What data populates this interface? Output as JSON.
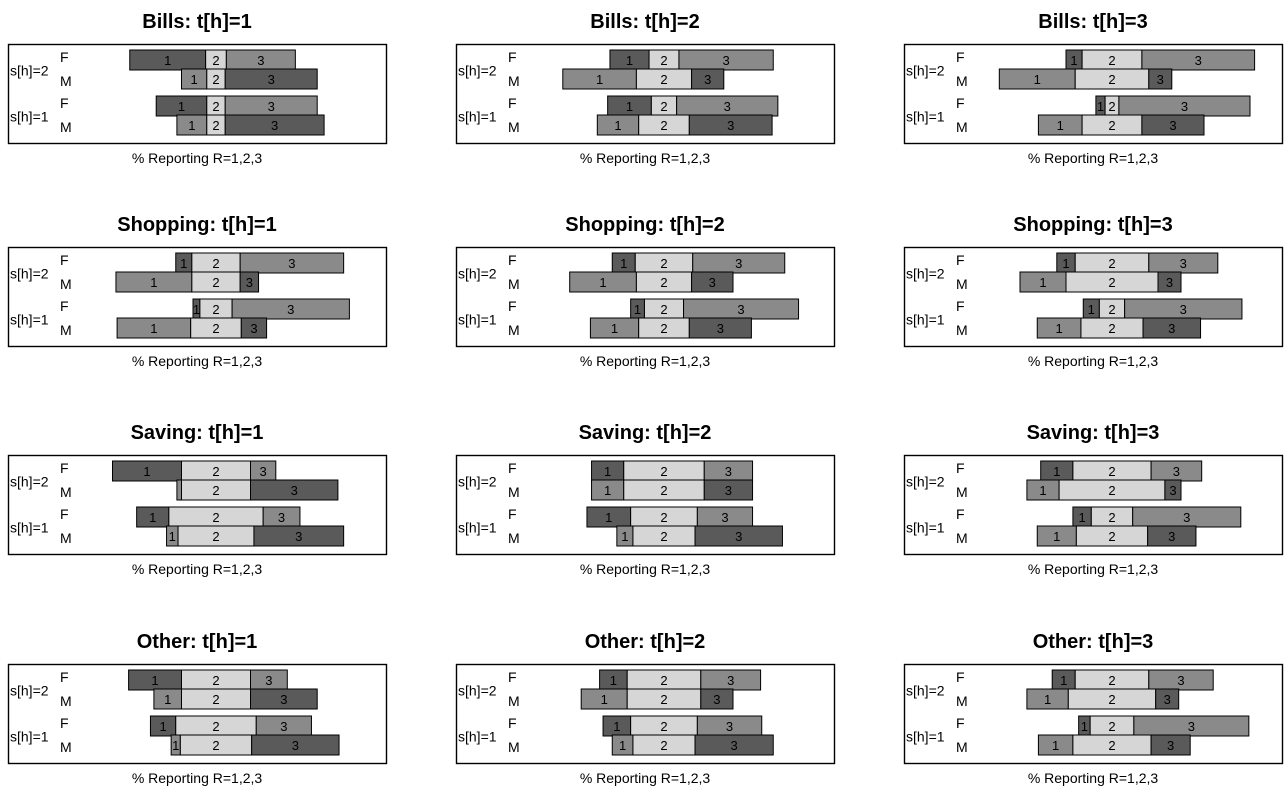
{
  "chart_data": {
    "type": "bar",
    "stacking": "diverging, centered on segment 2",
    "grid": false,
    "legend": "none",
    "x_label": "% Reporting R=1,2,3",
    "group_labels": [
      "s[h]=2",
      "s[h]=1"
    ],
    "sex_labels": [
      "F",
      "M"
    ],
    "segment_labels": [
      "1",
      "2",
      "3"
    ],
    "colors": {
      "F_seg1": "#5a5a5a",
      "F_seg2": "#d6d6d6",
      "F_seg3": "#8a8a8a",
      "M_seg1": "#8a8a8a",
      "M_seg2": "#d6d6d6",
      "M_seg3": "#5a5a5a"
    },
    "panels": [
      {
        "title": "Bills:  t[h]=1",
        "bars": {
          "s2": {
            "F": [
              33,
              9,
              30
            ],
            "M": [
              11,
              8,
              40
            ]
          },
          "s1": {
            "F": [
              22,
              8,
              40
            ],
            "M": [
              13,
              8,
              43
            ]
          }
        }
      },
      {
        "title": "Bills:  t[h]=2",
        "bars": {
          "s2": {
            "F": [
              17,
              13,
              41
            ],
            "M": [
              32,
              24,
              14
            ]
          },
          "s1": {
            "F": [
              19,
              11,
              44
            ],
            "M": [
              18,
              22,
              36
            ]
          }
        }
      },
      {
        "title": "Bills:  t[h]=3",
        "bars": {
          "s2": {
            "F": [
              7,
              26,
              49
            ],
            "M": [
              33,
              32,
              10
            ]
          },
          "s1": {
            "F": [
              4,
              6,
              57
            ],
            "M": [
              19,
              26,
              27
            ]
          }
        }
      },
      {
        "title": "Shopping:  t[h]=1",
        "bars": {
          "s2": {
            "F": [
              7,
              21,
              45
            ],
            "M": [
              33,
              21,
              8
            ]
          },
          "s1": {
            "F": [
              3,
              14,
              51
            ],
            "M": [
              32,
              22,
              11
            ]
          }
        }
      },
      {
        "title": "Shopping:  t[h]=2",
        "bars": {
          "s2": {
            "F": [
              10,
              25,
              40
            ],
            "M": [
              29,
              24,
              18
            ]
          },
          "s1": {
            "F": [
              6,
              17,
              50
            ],
            "M": [
              21,
              22,
              27
            ]
          }
        }
      },
      {
        "title": "Shopping:  t[h]=3",
        "bars": {
          "s2": {
            "F": [
              8,
              32,
              30
            ],
            "M": [
              20,
              40,
              10
            ]
          },
          "s1": {
            "F": [
              7,
              11,
              51
            ],
            "M": [
              19,
              27,
              25
            ]
          }
        }
      },
      {
        "title": "Saving:  t[h]=1",
        "bars": {
          "s2": {
            "F": [
              30,
              30,
              11
            ],
            "M": [
              2,
              30,
              38
            ]
          },
          "s1": {
            "F": [
              14,
              41,
              16
            ],
            "M": [
              5,
              33,
              39
            ]
          }
        }
      },
      {
        "title": "Saving:  t[h]=2",
        "bars": {
          "s2": {
            "F": [
              14,
              35,
              21
            ],
            "M": [
              14,
              35,
              21
            ]
          },
          "s1": {
            "F": [
              19,
              29,
              24
            ],
            "M": [
              7,
              27,
              38
            ]
          }
        }
      },
      {
        "title": "Saving:  t[h]=3",
        "bars": {
          "s2": {
            "F": [
              14,
              34,
              22
            ],
            "M": [
              14,
              46,
              7
            ]
          },
          "s1": {
            "F": [
              8,
              18,
              47
            ],
            "M": [
              17,
              31,
              21
            ]
          }
        }
      },
      {
        "title": "Other:  t[h]=1",
        "bars": {
          "s2": {
            "F": [
              23,
              30,
              16
            ],
            "M": [
              12,
              30,
              29
            ]
          },
          "s1": {
            "F": [
              11,
              35,
              24
            ],
            "M": [
              4,
              31,
              38
            ]
          }
        }
      },
      {
        "title": "Other:  t[h]=2",
        "bars": {
          "s2": {
            "F": [
              12,
              32,
              26
            ],
            "M": [
              20,
              32,
              14
            ]
          },
          "s1": {
            "F": [
              12,
              29,
              28
            ],
            "M": [
              9,
              27,
              34
            ]
          }
        }
      },
      {
        "title": "Other:  t[h]=3",
        "bars": {
          "s2": {
            "F": [
              10,
              32,
              28
            ],
            "M": [
              18,
              38,
              10
            ]
          },
          "s1": {
            "F": [
              5,
              19,
              50
            ],
            "M": [
              15,
              34,
              17
            ]
          }
        }
      }
    ]
  }
}
